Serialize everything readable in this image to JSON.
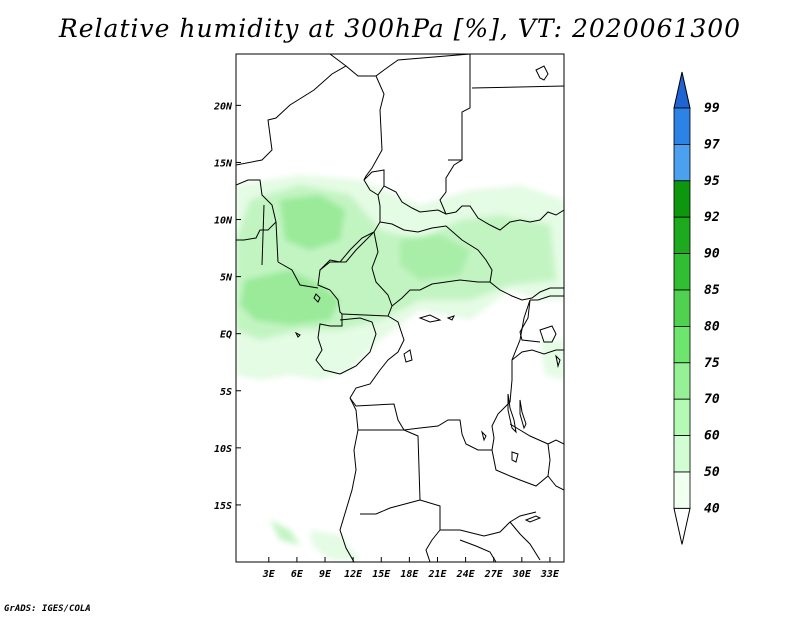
{
  "title": "Relative humidity at 300hPa [%], VT: 2020061300",
  "credit": "GrADS: IGES/COLA",
  "map": {
    "lon_range": [
      -0.5,
      34.5
    ],
    "lat_range": [
      -20,
      24.5
    ],
    "lon_ticks": [
      {
        "value": 3,
        "label": "3E"
      },
      {
        "value": 6,
        "label": "6E"
      },
      {
        "value": 9,
        "label": "9E"
      },
      {
        "value": 12,
        "label": "12E"
      },
      {
        "value": 15,
        "label": "15E"
      },
      {
        "value": 18,
        "label": "18E"
      },
      {
        "value": 21,
        "label": "21E"
      },
      {
        "value": 24,
        "label": "24E"
      },
      {
        "value": 27,
        "label": "27E"
      },
      {
        "value": 30,
        "label": "30E"
      },
      {
        "value": 33,
        "label": "33E"
      }
    ],
    "lat_ticks": [
      {
        "value": 20,
        "label": "20N"
      },
      {
        "value": 15,
        "label": "15N"
      },
      {
        "value": 10,
        "label": "10N"
      },
      {
        "value": 5,
        "label": "5N"
      },
      {
        "value": 0,
        "label": "EQ"
      },
      {
        "value": -5,
        "label": "5S"
      },
      {
        "value": -10,
        "label": "10S"
      },
      {
        "value": -15,
        "label": "15S"
      }
    ]
  },
  "colorbar": {
    "levels": [
      {
        "label": "99"
      },
      {
        "label": "97"
      },
      {
        "label": "95"
      },
      {
        "label": "92"
      },
      {
        "label": "90"
      },
      {
        "label": "85"
      },
      {
        "label": "80"
      },
      {
        "label": "75"
      },
      {
        "label": "70"
      },
      {
        "label": "60"
      },
      {
        "label": "50"
      },
      {
        "label": "40"
      }
    ],
    "colors_top_to_bottom": [
      "#1e64d2",
      "#2d82e6",
      "#4ba0f0",
      "#0f960f",
      "#1eaa1e",
      "#32be32",
      "#50d250",
      "#6ee66e",
      "#96f096",
      "#b4fab4",
      "#d2fcd2",
      "#f0fff0",
      "#ffffff"
    ]
  },
  "colors": {
    "humid_light": "#e4fbe4",
    "humid_mid": "#c2f4c2",
    "humid_strong": "#9aea9a",
    "border": "#000000"
  }
}
